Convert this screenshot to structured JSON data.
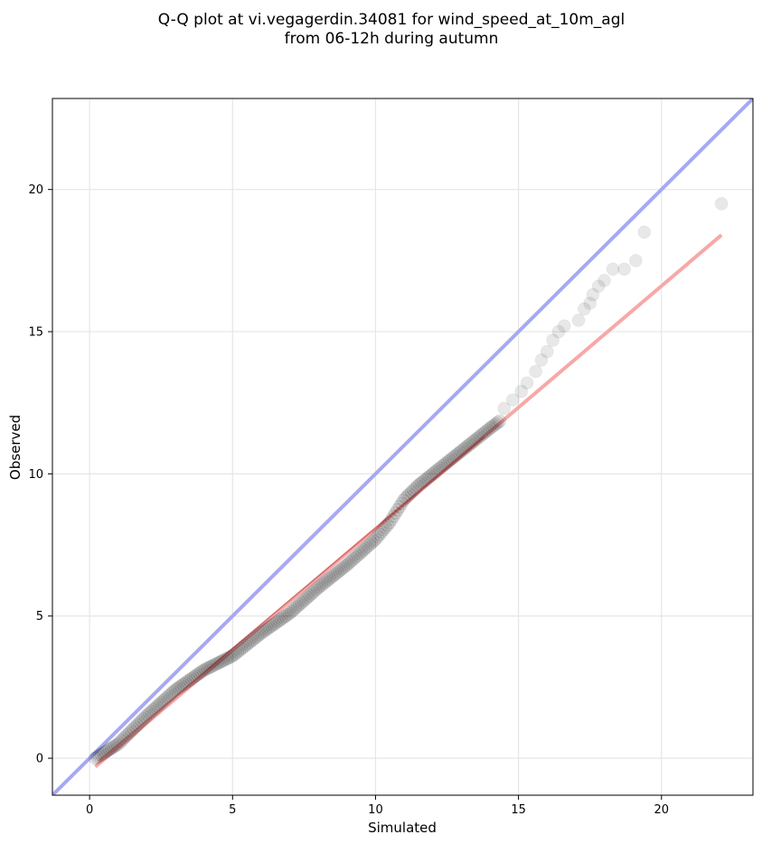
{
  "chart_data": {
    "type": "scatter",
    "title_line1": "Q-Q plot at vi.vegagerdin.34081 for wind_speed_at_10m_agl",
    "title_line2": "from 06-12h during autumn",
    "xlabel": "Simulated",
    "ylabel": "Observed",
    "xlim": [
      -1.3,
      23.2
    ],
    "ylim": [
      -1.3,
      23.2
    ],
    "xticks": [
      0,
      5,
      10,
      15,
      20
    ],
    "yticks": [
      0,
      5,
      10,
      15,
      20
    ],
    "grid": true,
    "colors": {
      "points": "#000000",
      "identity_line": "#a6a9f2",
      "fit_line": "#f7a8a8",
      "fit_line_dark": "#8b0000"
    },
    "identity_line": {
      "x": [
        -1.3,
        23.2
      ],
      "y": [
        -1.3,
        23.2
      ]
    },
    "fit_line": {
      "x": [
        0.2,
        22.1
      ],
      "y": [
        -0.3,
        18.4
      ]
    },
    "outlier_points": [
      {
        "x": 14.5,
        "y": 12.3
      },
      {
        "x": 14.8,
        "y": 12.6
      },
      {
        "x": 15.1,
        "y": 12.9
      },
      {
        "x": 15.3,
        "y": 13.2
      },
      {
        "x": 15.6,
        "y": 13.6
      },
      {
        "x": 15.8,
        "y": 14.0
      },
      {
        "x": 16.0,
        "y": 14.3
      },
      {
        "x": 16.2,
        "y": 14.7
      },
      {
        "x": 16.4,
        "y": 15.0
      },
      {
        "x": 16.6,
        "y": 15.2
      },
      {
        "x": 17.1,
        "y": 15.4
      },
      {
        "x": 17.3,
        "y": 15.8
      },
      {
        "x": 17.5,
        "y": 16.0
      },
      {
        "x": 17.6,
        "y": 16.3
      },
      {
        "x": 17.8,
        "y": 16.6
      },
      {
        "x": 18.0,
        "y": 16.8
      },
      {
        "x": 18.3,
        "y": 17.2
      },
      {
        "x": 18.7,
        "y": 17.2
      },
      {
        "x": 19.1,
        "y": 17.5
      },
      {
        "x": 19.4,
        "y": 18.5
      },
      {
        "x": 22.1,
        "y": 19.5
      }
    ],
    "main_curve_knots": [
      {
        "x": 0.2,
        "y": 0.0
      },
      {
        "x": 1.0,
        "y": 0.5
      },
      {
        "x": 2.0,
        "y": 1.5
      },
      {
        "x": 3.0,
        "y": 2.4
      },
      {
        "x": 4.0,
        "y": 3.1
      },
      {
        "x": 5.0,
        "y": 3.6
      },
      {
        "x": 6.0,
        "y": 4.4
      },
      {
        "x": 7.0,
        "y": 5.1
      },
      {
        "x": 8.0,
        "y": 6.0
      },
      {
        "x": 9.0,
        "y": 6.8
      },
      {
        "x": 10.0,
        "y": 7.7
      },
      {
        "x": 10.5,
        "y": 8.3
      },
      {
        "x": 11.0,
        "y": 9.1
      },
      {
        "x": 11.5,
        "y": 9.6
      },
      {
        "x": 12.0,
        "y": 10.0
      },
      {
        "x": 13.0,
        "y": 10.8
      },
      {
        "x": 14.0,
        "y": 11.6
      },
      {
        "x": 14.4,
        "y": 11.9
      }
    ]
  }
}
